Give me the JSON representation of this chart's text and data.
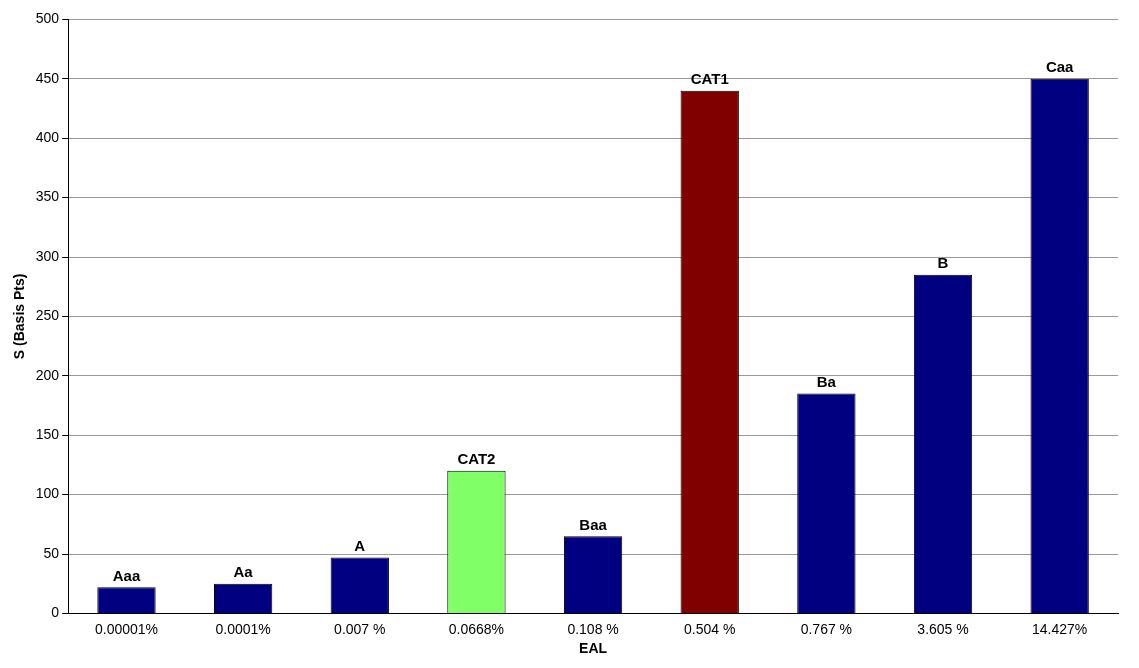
{
  "chart_data": {
    "type": "bar",
    "xlabel": "EAL",
    "ylabel": "S (Basis Pts)",
    "categories": [
      "0.00001%",
      "0.0001%",
      "0.007 %",
      "0.0668%",
      "0.108 %",
      "0.504 %",
      "0.767 %",
      "3.605 %",
      "14.427%"
    ],
    "values": [
      22,
      25,
      47,
      120,
      65,
      440,
      185,
      285,
      450
    ],
    "colors": [
      "#000080",
      "#000080",
      "#000080",
      "#80ff66",
      "#000080",
      "#800000",
      "#000080",
      "#000080",
      "#000080"
    ],
    "value_labels": [
      "Aaa",
      "Aa",
      "A",
      "CAT2",
      "Baa",
      "CAT1",
      "Ba",
      "B",
      "Caa"
    ],
    "ylim": [
      0,
      500
    ],
    "yticks": [
      0,
      50,
      100,
      150,
      200,
      250,
      300,
      350,
      400,
      450,
      500
    ],
    "grid": "y",
    "legend": false
  }
}
